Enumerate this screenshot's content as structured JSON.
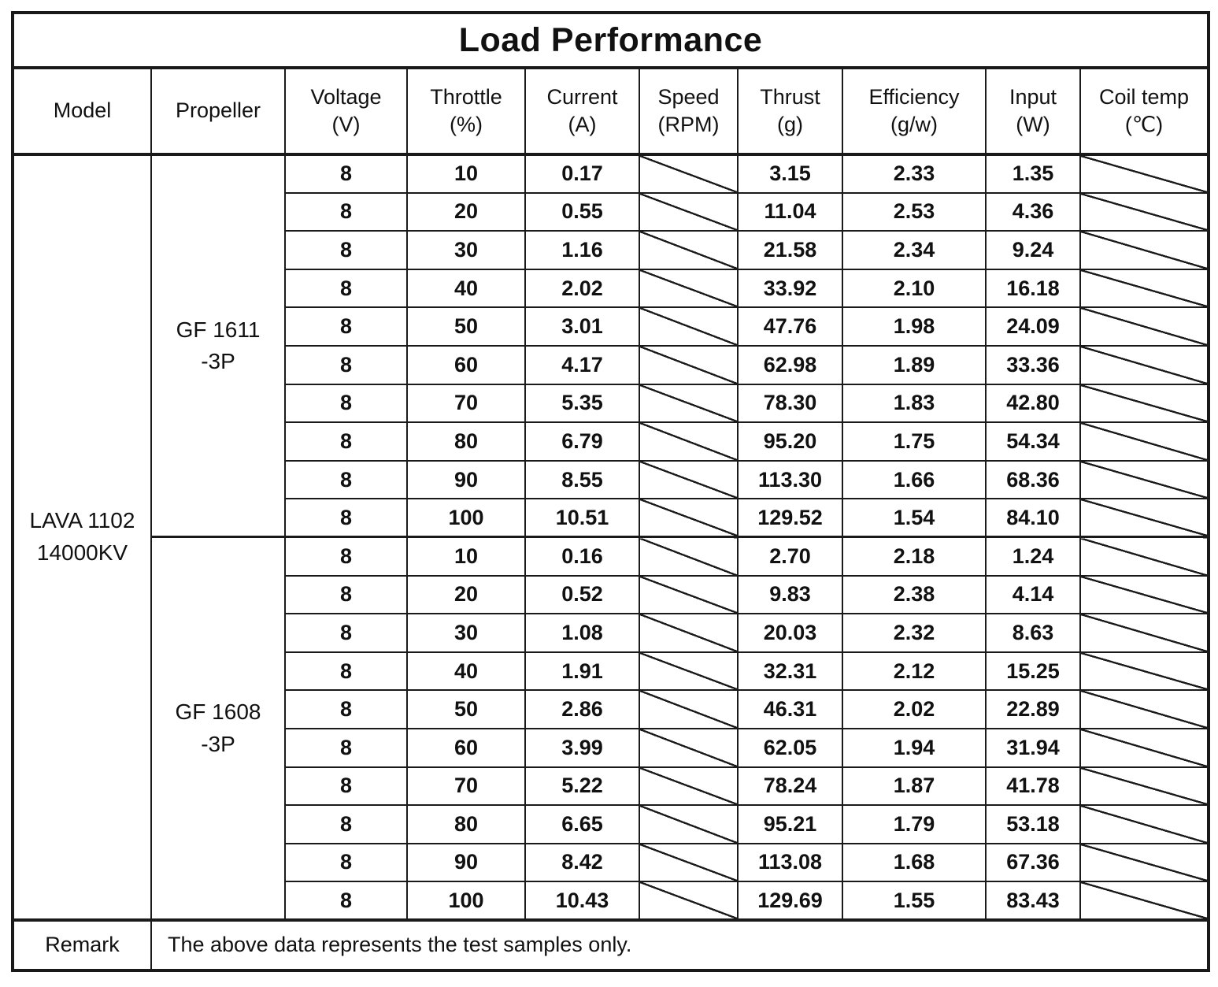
{
  "title": "Load Performance",
  "header": {
    "columns": [
      {
        "label": "Model",
        "unit": ""
      },
      {
        "label": "Propeller",
        "unit": ""
      },
      {
        "label": "Voltage",
        "unit": "(V)"
      },
      {
        "label": "Throttle",
        "unit": "(%)"
      },
      {
        "label": "Current",
        "unit": "(A)"
      },
      {
        "label": "Speed",
        "unit": "(RPM)"
      },
      {
        "label": "Thrust",
        "unit": "(g)"
      },
      {
        "label": "Efficiency",
        "unit": "(g/w)"
      },
      {
        "label": "Input",
        "unit": "(W)"
      },
      {
        "label": "Coil temp",
        "unit": "(℃)"
      }
    ]
  },
  "model": {
    "lines": [
      "LAVA 1102",
      "14000KV"
    ]
  },
  "groups": [
    {
      "propeller": {
        "lines": [
          "GF 1611",
          "-3P"
        ]
      },
      "rows": [
        {
          "voltage": "8",
          "throttle": "10",
          "current": "0.17",
          "speed": null,
          "thrust": "3.15",
          "efficiency": "2.33",
          "input": "1.35",
          "coil_temp": null
        },
        {
          "voltage": "8",
          "throttle": "20",
          "current": "0.55",
          "speed": null,
          "thrust": "11.04",
          "efficiency": "2.53",
          "input": "4.36",
          "coil_temp": null
        },
        {
          "voltage": "8",
          "throttle": "30",
          "current": "1.16",
          "speed": null,
          "thrust": "21.58",
          "efficiency": "2.34",
          "input": "9.24",
          "coil_temp": null
        },
        {
          "voltage": "8",
          "throttle": "40",
          "current": "2.02",
          "speed": null,
          "thrust": "33.92",
          "efficiency": "2.10",
          "input": "16.18",
          "coil_temp": null
        },
        {
          "voltage": "8",
          "throttle": "50",
          "current": "3.01",
          "speed": null,
          "thrust": "47.76",
          "efficiency": "1.98",
          "input": "24.09",
          "coil_temp": null
        },
        {
          "voltage": "8",
          "throttle": "60",
          "current": "4.17",
          "speed": null,
          "thrust": "62.98",
          "efficiency": "1.89",
          "input": "33.36",
          "coil_temp": null
        },
        {
          "voltage": "8",
          "throttle": "70",
          "current": "5.35",
          "speed": null,
          "thrust": "78.30",
          "efficiency": "1.83",
          "input": "42.80",
          "coil_temp": null
        },
        {
          "voltage": "8",
          "throttle": "80",
          "current": "6.79",
          "speed": null,
          "thrust": "95.20",
          "efficiency": "1.75",
          "input": "54.34",
          "coil_temp": null
        },
        {
          "voltage": "8",
          "throttle": "90",
          "current": "8.55",
          "speed": null,
          "thrust": "113.30",
          "efficiency": "1.66",
          "input": "68.36",
          "coil_temp": null
        },
        {
          "voltage": "8",
          "throttle": "100",
          "current": "10.51",
          "speed": null,
          "thrust": "129.52",
          "efficiency": "1.54",
          "input": "84.10",
          "coil_temp": null
        }
      ]
    },
    {
      "propeller": {
        "lines": [
          "GF 1608",
          "-3P"
        ]
      },
      "rows": [
        {
          "voltage": "8",
          "throttle": "10",
          "current": "0.16",
          "speed": null,
          "thrust": "2.70",
          "efficiency": "2.18",
          "input": "1.24",
          "coil_temp": null
        },
        {
          "voltage": "8",
          "throttle": "20",
          "current": "0.52",
          "speed": null,
          "thrust": "9.83",
          "efficiency": "2.38",
          "input": "4.14",
          "coil_temp": null
        },
        {
          "voltage": "8",
          "throttle": "30",
          "current": "1.08",
          "speed": null,
          "thrust": "20.03",
          "efficiency": "2.32",
          "input": "8.63",
          "coil_temp": null
        },
        {
          "voltage": "8",
          "throttle": "40",
          "current": "1.91",
          "speed": null,
          "thrust": "32.31",
          "efficiency": "2.12",
          "input": "15.25",
          "coil_temp": null
        },
        {
          "voltage": "8",
          "throttle": "50",
          "current": "2.86",
          "speed": null,
          "thrust": "46.31",
          "efficiency": "2.02",
          "input": "22.89",
          "coil_temp": null
        },
        {
          "voltage": "8",
          "throttle": "60",
          "current": "3.99",
          "speed": null,
          "thrust": "62.05",
          "efficiency": "1.94",
          "input": "31.94",
          "coil_temp": null
        },
        {
          "voltage": "8",
          "throttle": "70",
          "current": "5.22",
          "speed": null,
          "thrust": "78.24",
          "efficiency": "1.87",
          "input": "41.78",
          "coil_temp": null
        },
        {
          "voltage": "8",
          "throttle": "80",
          "current": "6.65",
          "speed": null,
          "thrust": "95.21",
          "efficiency": "1.79",
          "input": "53.18",
          "coil_temp": null
        },
        {
          "voltage": "8",
          "throttle": "90",
          "current": "8.42",
          "speed": null,
          "thrust": "113.08",
          "efficiency": "1.68",
          "input": "67.36",
          "coil_temp": null
        },
        {
          "voltage": "8",
          "throttle": "100",
          "current": "10.43",
          "speed": null,
          "thrust": "129.69",
          "efficiency": "1.55",
          "input": "83.43",
          "coil_temp": null
        }
      ]
    }
  ],
  "remark": {
    "label": "Remark",
    "text": "The above data represents the test samples only."
  },
  "colors": {
    "border": "#1a1a1a",
    "text": "#111111",
    "background": "#ffffff"
  }
}
